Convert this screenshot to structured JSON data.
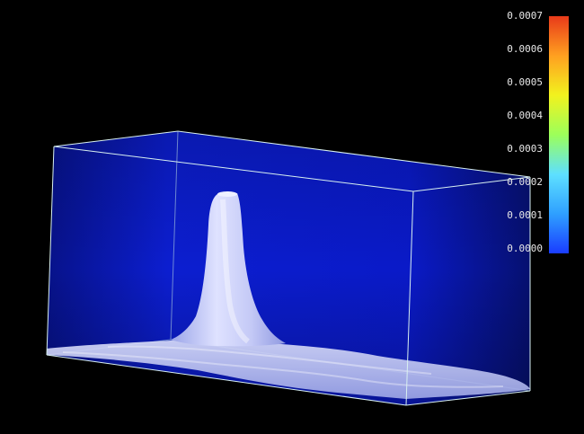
{
  "colorbar": {
    "colors": [
      "#1a3cff",
      "#2fa0ff",
      "#5ee0ff",
      "#9cff5a",
      "#f2f21e",
      "#ffa020",
      "#e83a1a"
    ],
    "labels": [
      "0.0007",
      "0.0006",
      "0.0005",
      "0.0004",
      "0.0003",
      "0.0002",
      "0.0001",
      "0.0000"
    ]
  },
  "scene": {
    "background_color": "#000000",
    "box_fill_color": "#0a17d4",
    "box_edge_color": "#cfe8e8",
    "surface_color": "#c8ccf5"
  }
}
